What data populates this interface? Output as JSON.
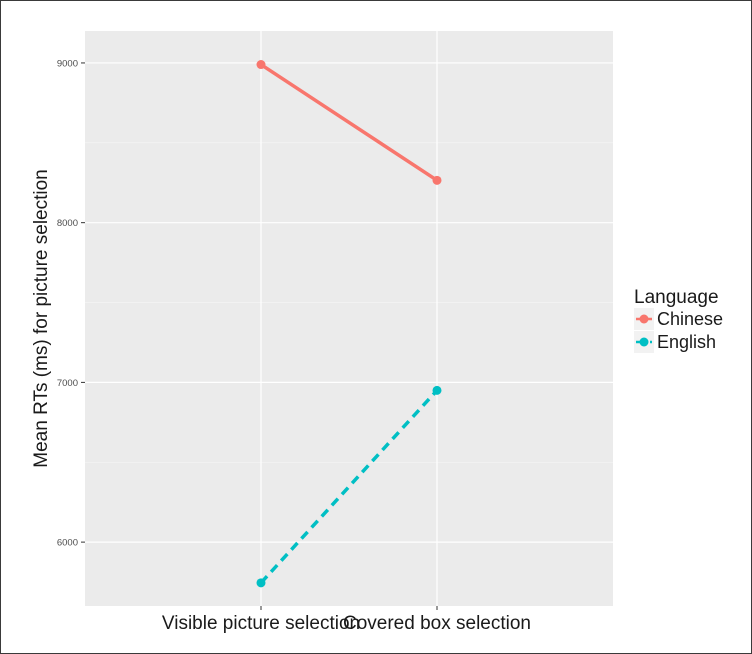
{
  "chart_data": {
    "type": "line",
    "xlabel": "",
    "ylabel": "Mean RTs (ms) for picture selection",
    "categories": [
      "Visible picture selection",
      "Covered box selection"
    ],
    "ylim": [
      5600,
      9200
    ],
    "y_ticks": [
      6000,
      7000,
      8000,
      9000
    ],
    "grid": true,
    "legend_title": "Language",
    "legend_position": "right",
    "series": [
      {
        "name": "Chinese",
        "values": [
          8990,
          8265
        ],
        "color": "#F8766D",
        "linestyle": "solid"
      },
      {
        "name": "English",
        "values": [
          5745,
          6950
        ],
        "color": "#00BFC4",
        "linestyle": "dashed"
      }
    ]
  }
}
